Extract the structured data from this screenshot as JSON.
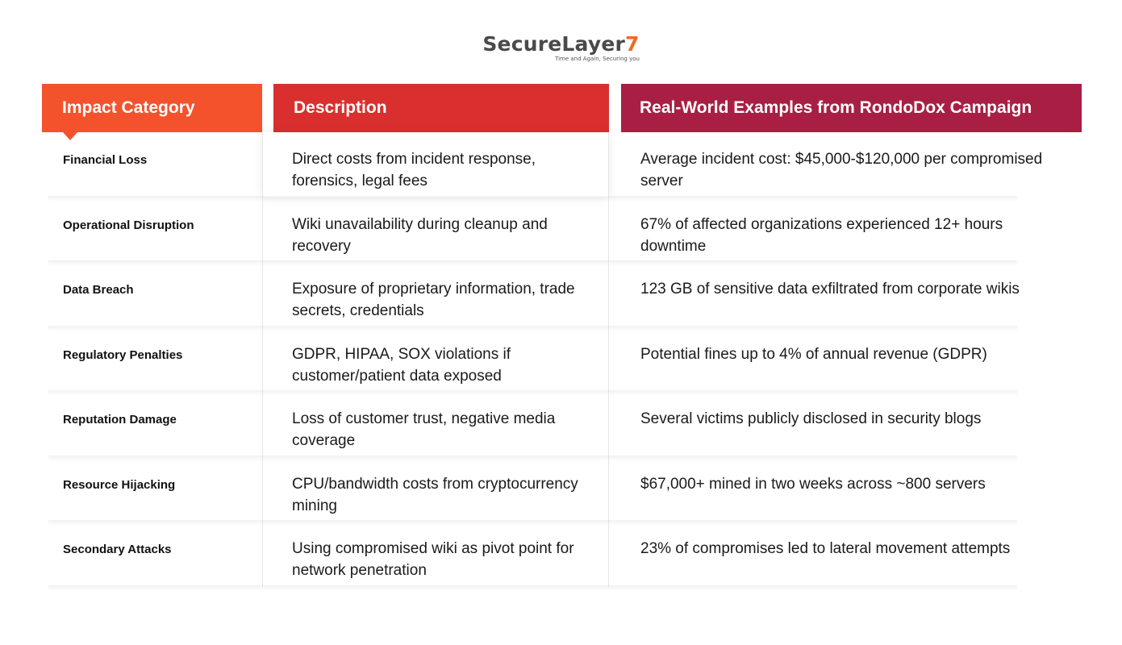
{
  "brand": {
    "name_part1": "SecureLayer",
    "name_part2": "7",
    "tagline": "Time and Again, Securing you"
  },
  "table": {
    "headers": [
      "Impact Category",
      "Description",
      "Real-World Examples from RondoDox Campaign"
    ],
    "rows": [
      {
        "category": "Financial Loss",
        "description": "Direct costs from incident response, forensics, legal fees",
        "example": "Average incident cost: $45,000-$120,000 per compromised server"
      },
      {
        "category": "Operational Disruption",
        "description": "Wiki unavailability during cleanup and recovery",
        "example": "67% of affected organizations experienced 12+ hours downtime"
      },
      {
        "category": "Data Breach",
        "description": "Exposure of proprietary information, trade secrets, credentials",
        "example": "123 GB of sensitive data exfiltrated from corporate wikis"
      },
      {
        "category": "Regulatory Penalties",
        "description": "GDPR, HIPAA, SOX violations if customer/patient data exposed",
        "example": "Potential fines up to 4% of annual revenue (GDPR)"
      },
      {
        "category": "Reputation Damage",
        "description": "Loss of customer trust, negative media coverage",
        "example": "Several victims publicly disclosed in security blogs"
      },
      {
        "category": "Resource Hijacking",
        "description": "CPU/bandwidth costs from cryptocurrency mining",
        "example": "$67,000+ mined in two weeks across ~800 servers"
      },
      {
        "category": "Secondary Attacks",
        "description": "Using compromised wiki as pivot point for network penetration",
        "example": "23% of compromises led to lateral movement attempts"
      }
    ]
  }
}
